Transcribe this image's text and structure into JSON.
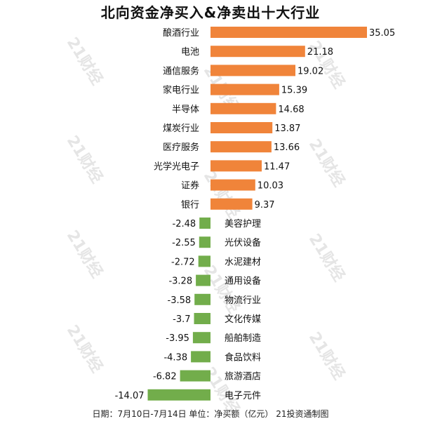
{
  "colors": {
    "positive": "#f0843a",
    "negative": "#72ad4b",
    "text": "#111111",
    "watermark": "#bdbdbd"
  },
  "watermark_text": "21财经",
  "footer": "日期：7月10日-7月14日 单位：净买额（亿元） 21投资通制图",
  "chart_data": {
    "type": "bar",
    "orientation": "horizontal",
    "title": "北向资金净买入&净卖出十大行业",
    "xlabel": "",
    "ylabel": "",
    "grid": false,
    "legend": "none",
    "xlim": [
      -14.07,
      35.05
    ],
    "categories": [
      "酿酒行业",
      "电池",
      "通信服务",
      "家电行业",
      "半导体",
      "煤炭行业",
      "医疗服务",
      "光学光电子",
      "证券",
      "银行",
      "美容护理",
      "光伏设备",
      "水泥建材",
      "通用设备",
      "物流行业",
      "文化传媒",
      "船舶制造",
      "食品饮料",
      "旅游酒店",
      "电子元件"
    ],
    "values": [
      35.05,
      21.18,
      19.02,
      15.39,
      14.68,
      13.87,
      13.66,
      11.47,
      10.03,
      9.37,
      -2.48,
      -2.55,
      -2.72,
      -3.28,
      -3.58,
      -3.7,
      -3.95,
      -4.38,
      -6.82,
      -14.07
    ],
    "value_labels": [
      "35.05",
      "21.18",
      "19.02",
      "15.39",
      "14.68",
      "13.87",
      "13.66",
      "11.47",
      "10.03",
      "9.37",
      "-2.48",
      "-2.55",
      "-2.72",
      "-3.28",
      "-3.58",
      "-3.7",
      "-3.95",
      "-4.38",
      "-6.82",
      "-14.07"
    ]
  }
}
